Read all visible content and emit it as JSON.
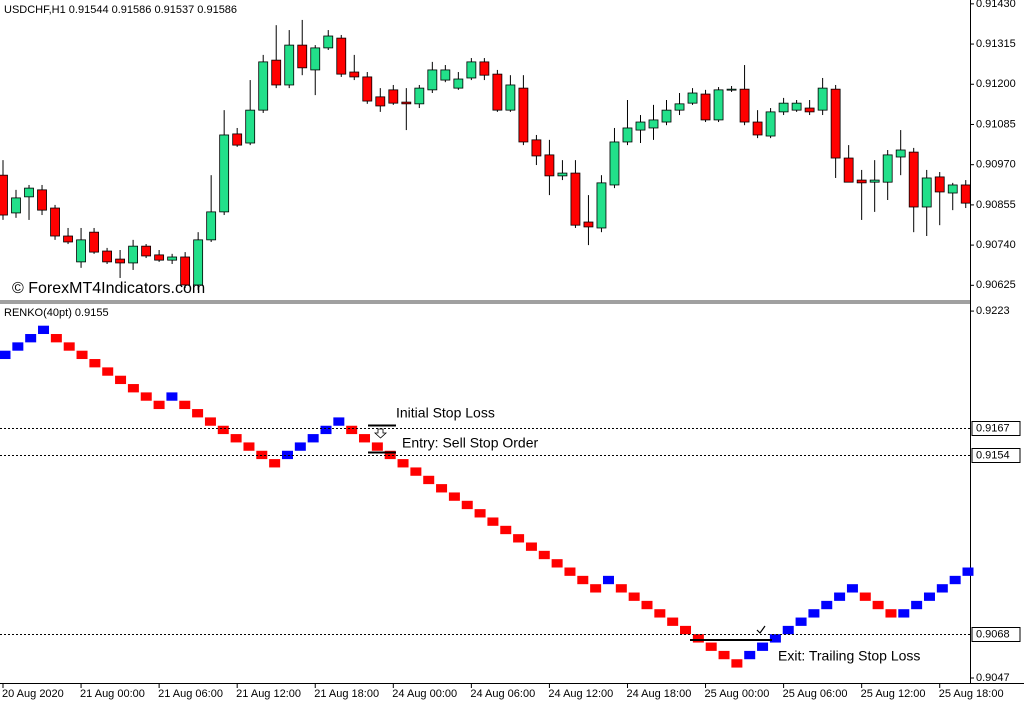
{
  "chart_data": [
    {
      "type": "candlestick",
      "title": "USDCHF,H1",
      "ohlc": [
        0.91544,
        0.91586,
        0.91537,
        0.91586
      ],
      "watermark": "© ForexMT4Indicators.com",
      "up_color": "#22e08a",
      "down_color": "#ff0000",
      "categories": [
        "20 Aug 2020",
        null,
        null,
        null,
        null,
        null,
        "21 Aug 00:00",
        null,
        null,
        null,
        null,
        null,
        "21 Aug 06:00",
        null,
        null,
        null,
        null,
        null,
        "21 Aug 12:00",
        null,
        null,
        null,
        null,
        null,
        "21 Aug 18:00",
        null,
        null,
        null,
        null,
        null,
        "24 Aug 00:00",
        null,
        null,
        null,
        null,
        null,
        "24 Aug 06:00",
        null,
        null,
        null,
        null,
        null,
        "24 Aug 12:00",
        null,
        null,
        null,
        null,
        null,
        "24 Aug 18:00",
        null,
        null,
        null,
        null,
        null,
        "25 Aug 00:00",
        null,
        null,
        null,
        null,
        null,
        "25 Aug 06:00",
        null,
        null,
        null,
        null,
        null,
        "25 Aug 12:00",
        null,
        null,
        null,
        null,
        null,
        "25 Aug 18:00",
        null,
        null
      ],
      "open": [
        0.9094,
        0.90832,
        0.90878,
        0.90898,
        0.90846,
        0.90766,
        0.90692,
        0.90777,
        0.90723,
        0.907,
        0.90689,
        0.90737,
        0.90712,
        0.90697,
        0.90706,
        0.90626,
        0.90755,
        0.90835,
        0.91058,
        0.91032,
        0.91126,
        0.91269,
        0.91198,
        0.91312,
        0.91241,
        0.91304,
        0.91332,
        0.91235,
        0.91221,
        0.91164,
        0.91184,
        0.91149,
        0.91144,
        0.91184,
        0.91212,
        0.91189,
        0.91218,
        0.91264,
        0.91229,
        0.91126,
        0.91189,
        0.91041,
        0.90998,
        0.90938,
        0.90946,
        0.90806,
        0.90789,
        0.90912,
        0.91035,
        0.91069,
        0.91075,
        0.91092,
        0.91126,
        0.91146,
        0.91172,
        0.91098,
        0.91184,
        0.91186,
        0.91092,
        0.91052,
        0.91121,
        0.91126,
        0.91132,
        0.91126,
        0.91186,
        0.90989,
        0.90926,
        0.9092,
        0.9092,
        0.90992,
        0.91006,
        0.90849,
        0.90935,
        0.90889,
        0.90912
      ],
      "high": [
        0.90983,
        0.90898,
        0.90912,
        0.90912,
        0.90855,
        0.90789,
        0.90789,
        0.90789,
        0.90732,
        0.90726,
        0.90755,
        0.90743,
        0.90726,
        0.90715,
        0.9072,
        0.90777,
        0.9094,
        0.91126,
        0.91075,
        0.91212,
        0.91284,
        0.91369,
        0.91355,
        0.91384,
        0.91312,
        0.91355,
        0.91341,
        0.91284,
        0.91235,
        0.91189,
        0.91198,
        0.91189,
        0.91198,
        0.91264,
        0.91255,
        0.91235,
        0.91275,
        0.91275,
        0.91241,
        0.91226,
        0.91226,
        0.91055,
        0.91041,
        0.90983,
        0.90983,
        0.90883,
        0.9094,
        0.91075,
        0.91155,
        0.91112,
        0.91141,
        0.91155,
        0.91175,
        0.91189,
        0.91184,
        0.91192,
        0.91195,
        0.91255,
        0.91126,
        0.91132,
        0.91161,
        0.91155,
        0.91155,
        0.91218,
        0.91198,
        0.91026,
        0.90955,
        0.90983,
        0.91012,
        0.91069,
        0.91018,
        0.90955,
        0.90949,
        0.90918,
        0.90926
      ],
      "low": [
        0.90812,
        0.90818,
        0.90812,
        0.90826,
        0.90755,
        0.90743,
        0.90675,
        0.90715,
        0.90686,
        0.90646,
        0.90669,
        0.90703,
        0.90692,
        0.90686,
        0.90617,
        0.90612,
        0.90749,
        0.90826,
        0.91021,
        0.91026,
        0.91118,
        0.91189,
        0.91189,
        0.91226,
        0.91169,
        0.91298,
        0.91221,
        0.91212,
        0.91144,
        0.91121,
        0.91141,
        0.91069,
        0.91132,
        0.91175,
        0.91206,
        0.91184,
        0.91212,
        0.91212,
        0.91121,
        0.91121,
        0.91026,
        0.90969,
        0.90883,
        0.90926,
        0.90789,
        0.9074,
        0.90777,
        0.90903,
        0.91026,
        0.91032,
        0.91041,
        0.91083,
        0.91112,
        0.91141,
        0.91092,
        0.91092,
        0.91178,
        0.91083,
        0.91046,
        0.91046,
        0.91112,
        0.91121,
        0.91112,
        0.91112,
        0.90932,
        0.9092,
        0.90812,
        0.90835,
        0.90869,
        0.9094,
        0.90777,
        0.90766,
        0.90797,
        0.9084,
        0.90846
      ],
      "close": [
        0.90826,
        0.90875,
        0.90903,
        0.9084,
        0.90766,
        0.90749,
        0.90755,
        0.9072,
        0.90692,
        0.90689,
        0.90737,
        0.90709,
        0.90697,
        0.90706,
        0.90626,
        0.90755,
        0.90835,
        0.91055,
        0.91026,
        0.91126,
        0.91264,
        0.91198,
        0.91312,
        0.91247,
        0.91304,
        0.91338,
        0.91229,
        0.91221,
        0.91152,
        0.91138,
        0.91146,
        0.91144,
        0.91189,
        0.91241,
        0.91241,
        0.91215,
        0.91264,
        0.91226,
        0.91126,
        0.91198,
        0.91035,
        0.90995,
        0.90938,
        0.90946,
        0.90797,
        0.90792,
        0.90918,
        0.91035,
        0.91075,
        0.91092,
        0.91098,
        0.91126,
        0.91144,
        0.91175,
        0.91098,
        0.91184,
        0.91186,
        0.91092,
        0.91055,
        0.91121,
        0.91146,
        0.91146,
        0.91121,
        0.91189,
        0.90989,
        0.9092,
        0.90918,
        0.90926,
        0.90998,
        0.91012,
        0.90849,
        0.90932,
        0.90892,
        0.90912,
        0.9086
      ],
      "ylim": [
        0.90583,
        0.91441
      ],
      "yticks": [
        {
          "value": 0.9143,
          "label": "0.91430"
        },
        0.91315,
        {
          "value": 0.912,
          "label": "0.91200"
        },
        0.91085,
        {
          "value": 0.9097,
          "label": "0.90970"
        },
        0.90855,
        {
          "value": 0.9074,
          "label": "0.90740"
        },
        0.90625
      ]
    },
    {
      "type": "renko",
      "title": "RENKO(40pt)",
      "last": 0.9155,
      "up_color": "#0000ff",
      "down_color": "#ff0000",
      "open": [
        0.92,
        0.9204,
        0.9208,
        0.9212,
        0.9212,
        0.9208,
        0.9204,
        0.92,
        0.9196,
        0.9192,
        0.9188,
        0.9184,
        0.918,
        0.918,
        0.918,
        0.9176,
        0.9172,
        0.9168,
        0.9164,
        0.916,
        0.9156,
        0.9152,
        0.9152,
        0.9156,
        0.916,
        0.9164,
        0.9168,
        0.9168,
        0.9164,
        0.916,
        0.9156,
        0.9152,
        0.9148,
        0.9144,
        0.914,
        0.9136,
        0.9132,
        0.9128,
        0.9124,
        0.912,
        0.9116,
        0.9112,
        0.9108,
        0.9104,
        0.91,
        0.9096,
        0.9092,
        0.9092,
        0.9092,
        0.9088,
        0.9084,
        0.908,
        0.9076,
        0.9072,
        0.9068,
        0.9064,
        0.906,
        0.9056,
        0.9056,
        0.906,
        0.9064,
        0.9068,
        0.9072,
        0.9076,
        0.908,
        0.9084,
        0.9088,
        0.9088,
        0.9084,
        0.908,
        0.9076,
        0.908,
        0.9084,
        0.9088,
        0.9092,
        0.9096
      ],
      "close": [
        0.9204,
        0.9208,
        0.9212,
        0.9216,
        0.9208,
        0.9204,
        0.92,
        0.9196,
        0.9192,
        0.9188,
        0.9184,
        0.918,
        0.9176,
        0.9184,
        0.9176,
        0.9172,
        0.9168,
        0.9164,
        0.916,
        0.9156,
        0.9152,
        0.9148,
        0.9156,
        0.916,
        0.9164,
        0.9168,
        0.9172,
        0.9164,
        0.916,
        0.9156,
        0.9152,
        0.9148,
        0.9144,
        0.914,
        0.9136,
        0.9132,
        0.9128,
        0.9124,
        0.912,
        0.9116,
        0.9112,
        0.9108,
        0.9104,
        0.91,
        0.9096,
        0.9092,
        0.9088,
        0.9096,
        0.9088,
        0.9084,
        0.908,
        0.9076,
        0.9072,
        0.9068,
        0.9064,
        0.906,
        0.9056,
        0.9052,
        0.906,
        0.9064,
        0.9068,
        0.9072,
        0.9076,
        0.908,
        0.9084,
        0.9088,
        0.9092,
        0.9084,
        0.908,
        0.9076,
        0.908,
        0.9084,
        0.9088,
        0.9092,
        0.9096,
        0.91
      ],
      "ylim": [
        0.90446,
        0.92264
      ],
      "yticks": [
        0.9223,
        0.9047
      ],
      "levels": [
        0.9167,
        0.9154,
        0.9068
      ],
      "annotations": [
        "Initial Stop Loss",
        "Entry: Sell Stop Order",
        "Exit: Trailing Stop Loss"
      ]
    }
  ]
}
